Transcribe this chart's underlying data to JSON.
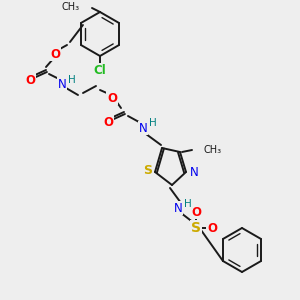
{
  "background_color": "#eeeeee",
  "figsize": [
    3.0,
    3.0
  ],
  "dpi": 100,
  "bond_color": "#1a1a1a",
  "colors": {
    "O": "#ff0000",
    "N": "#0000ee",
    "S": "#ccaa00",
    "Cl": "#22bb22",
    "H": "#008080",
    "C": "#1a1a1a"
  }
}
